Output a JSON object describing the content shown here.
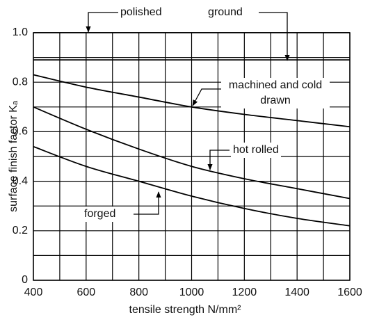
{
  "chart_data": {
    "type": "line",
    "xlabel": "tensile strength N/mm²",
    "ylabel": "surface finish factor Kₐ",
    "x": [
      400,
      600,
      800,
      1000,
      1200,
      1400,
      1600
    ],
    "series": [
      {
        "name": "polished",
        "color": "#000000",
        "values": [
          1.0,
          1.0,
          1.0,
          1.0,
          1.0,
          1.0,
          1.0
        ]
      },
      {
        "name": "ground",
        "color": "#000000",
        "values": [
          0.89,
          0.89,
          0.89,
          0.89,
          0.89,
          0.89,
          0.89
        ]
      },
      {
        "name": "machined and cold drawn",
        "color": "#000000",
        "values": [
          0.83,
          0.78,
          0.74,
          0.7,
          0.67,
          0.645,
          0.62
        ]
      },
      {
        "name": "hot rolled",
        "color": "#000000",
        "values": [
          0.7,
          0.61,
          0.53,
          0.46,
          0.41,
          0.37,
          0.33
        ]
      },
      {
        "name": "forged",
        "color": "#000000",
        "values": [
          0.54,
          0.46,
          0.4,
          0.34,
          0.29,
          0.25,
          0.22
        ]
      }
    ],
    "xlim": [
      400,
      1600
    ],
    "xticks": [
      400,
      600,
      800,
      1000,
      1200,
      1400,
      1600
    ],
    "x_minor_ticks": [
      500,
      700,
      900,
      1100,
      1300,
      1500
    ],
    "ylim": [
      0,
      1
    ],
    "yticks": [
      0,
      0.2,
      0.4,
      0.6,
      0.8,
      {
        "value": 1,
        "label": "1.0"
      }
    ],
    "y_minor_ticks": [
      0.1,
      0.3,
      0.5,
      0.7,
      0.9
    ],
    "grid": true
  }
}
